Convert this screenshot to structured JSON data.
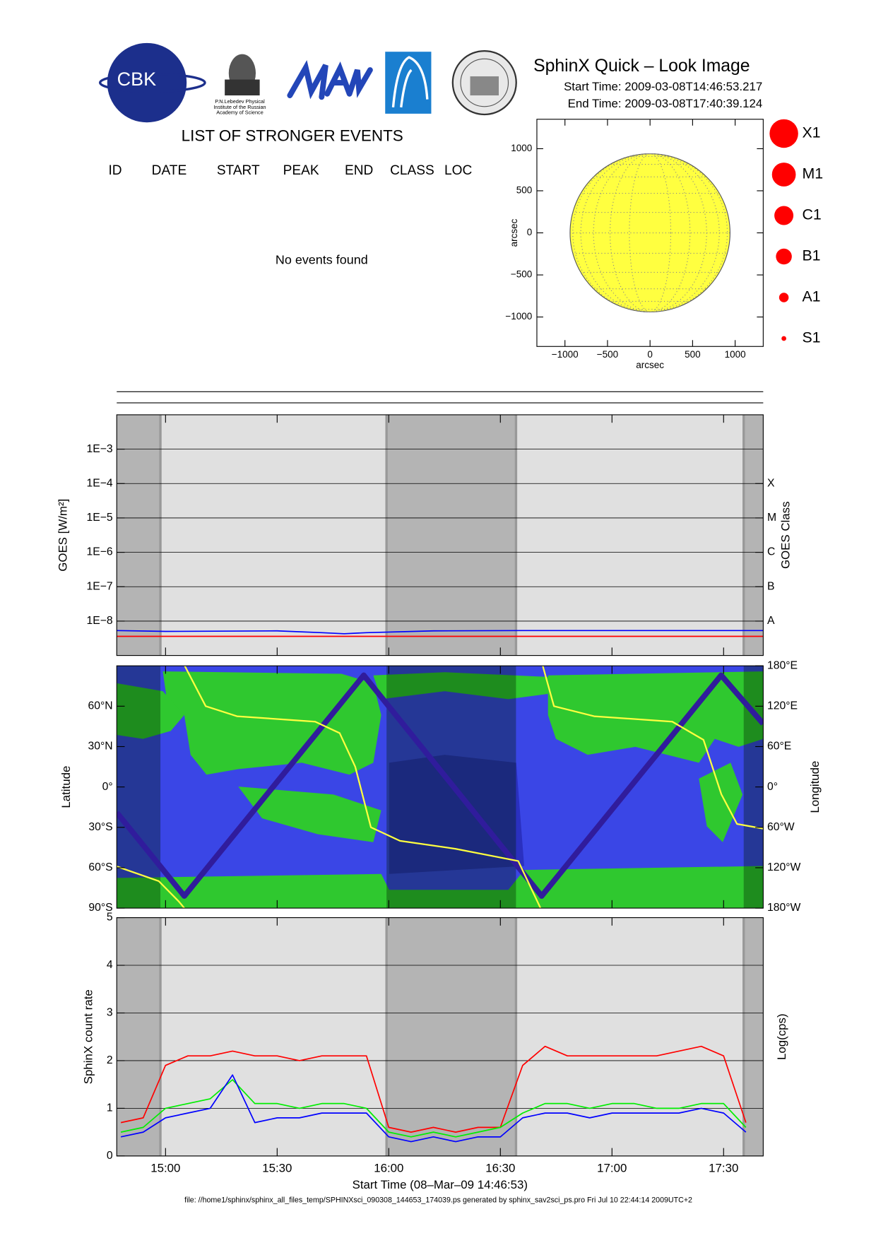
{
  "header": {
    "title": "SphinX Quick – Look Image",
    "start_time": "Start Time: 2009-03-08T14:46:53.217",
    "end_time": "End Time: 2009-03-08T17:40:39.124",
    "logo_text": "CBK",
    "logo_caption": [
      "P.N.Lebedev Physical",
      "Institute of the Russian",
      "Academy of Science"
    ]
  },
  "events": {
    "title": "LIST OF STRONGER EVENTS",
    "columns": [
      "ID",
      "DATE",
      "START",
      "PEAK",
      "END",
      "CLASS",
      "LOC"
    ],
    "message": "No events found"
  },
  "legend_classes": [
    "X1",
    "M1",
    "C1",
    "B1",
    "A1",
    "S1"
  ],
  "footer": "file: //home1/sphinx/sphinx_all_files_temp/SPHINXsci_090308_144653_174039.ps generated by sphinx_sav2sci_ps.pro Fri Jul 10 22:44:14 2009UTC+2",
  "chart_data": [
    {
      "type": "disk",
      "xlabel": "arcsec",
      "ylabel": "arcsec",
      "xlim": [
        -1330,
        1330
      ],
      "ylim": [
        -1350,
        1350
      ],
      "xticks": [
        {
          "value": -1000,
          "label": "−1000"
        },
        {
          "value": -500,
          "label": "−500"
        },
        0,
        500,
        1000
      ],
      "yticks": [
        {
          "value": -1000,
          "label": "−1000"
        },
        {
          "value": -500,
          "label": "−500"
        },
        0,
        500,
        1000
      ],
      "radius": 940,
      "color": "#ffff40"
    },
    {
      "type": "line",
      "ylabel": "GOES [W/m²]",
      "y2label": "GOES Class",
      "log_y": true,
      "xlim": [
        14.7814,
        17.6775
      ],
      "xticks": [
        15,
        15.5,
        16,
        16.5,
        17,
        17.5
      ],
      "ylim": [
        1e-09,
        0.01
      ],
      "yticks": [
        {
          "value": 0.001,
          "label": "1E−3"
        },
        {
          "value": 0.0001,
          "label": "1E−4"
        },
        {
          "value": 1e-05,
          "label": "1E−5"
        },
        {
          "value": 1e-06,
          "label": "1E−6"
        },
        {
          "value": 1e-07,
          "label": "1E−7"
        },
        {
          "value": 1e-08,
          "label": "1E−8"
        }
      ],
      "y2lim": [
        1e-09,
        0.01
      ],
      "y2ticks": [
        {
          "value": 0.0001,
          "label": "X"
        },
        {
          "value": 1e-05,
          "label": "M"
        },
        {
          "value": 1e-06,
          "label": "C"
        },
        {
          "value": 1e-07,
          "label": "B"
        },
        {
          "value": 1e-08,
          "label": "A"
        }
      ],
      "grid": true,
      "shaded": [
        [
          14.7814,
          14.977
        ],
        [
          15.99,
          16.57
        ],
        [
          17.59,
          17.6775
        ]
      ],
      "series": [
        {
          "color": "#0000ff",
          "x": [
            14.7814,
            15.0,
            15.5,
            15.7,
            15.8,
            15.9,
            16.2,
            16.6,
            17.0,
            17.6775
          ],
          "values": [
            5.3e-09,
            5e-09,
            5.2e-09,
            4.6e-09,
            4.3e-09,
            4.6e-09,
            5.2e-09,
            5.3e-09,
            5.3e-09,
            5.3e-09
          ]
        },
        {
          "color": "#ff0000",
          "x": [
            14.7814,
            17.6775
          ],
          "values": [
            3.6e-09,
            3.6e-09
          ]
        }
      ]
    },
    {
      "type": "map",
      "ylabel": "Latitude",
      "y2label": "Longitude",
      "xlim": [
        14.7814,
        17.6775
      ],
      "xticks": [
        15,
        15.5,
        16,
        16.5,
        17,
        17.5
      ],
      "ylim": [
        -90,
        90
      ],
      "yticks": [
        {
          "value": 60,
          "label": "60°N"
        },
        {
          "value": 30,
          "label": "30°N"
        },
        {
          "value": 0,
          "label": "0°"
        },
        {
          "value": -30,
          "label": "30°S"
        },
        {
          "value": -60,
          "label": "60°S"
        },
        {
          "value": -90,
          "label": "90°S"
        }
      ],
      "y2lim": [
        -180,
        180
      ],
      "y2ticks": [
        {
          "value": 180,
          "label": "180°E"
        },
        {
          "value": 120,
          "label": "120°E"
        },
        {
          "value": 60,
          "label": "60°E"
        },
        {
          "value": 0,
          "label": "0°"
        },
        {
          "value": -60,
          "label": "60°W"
        },
        {
          "value": -120,
          "label": "120°W"
        },
        {
          "value": -180,
          "label": "180°W"
        }
      ],
      "shaded": [
        [
          14.7814,
          14.977
        ],
        [
          15.99,
          16.57
        ],
        [
          17.59,
          17.6775
        ]
      ],
      "series": [
        {
          "color": "#301c9c",
          "x": [
            14.7814,
            15.084,
            15.888,
            16.685,
            17.489,
            17.677
          ],
          "values": [
            -19,
            -81,
            83,
            -81,
            83,
            47
          ]
        },
        {
          "color": "#ffff40",
          "axis": "y2",
          "x": [
            14.781,
            14.97,
            15.059,
            15.084,
            15.085,
            15.086,
            15.18,
            15.32,
            15.67,
            15.78,
            15.85,
            15.92,
            16.05,
            16.3,
            16.58,
            16.68,
            16.685,
            16.69,
            16.74,
            16.92,
            17.27,
            17.41,
            17.49,
            17.56,
            17.677
          ],
          "values": [
            -118,
            -140,
            -170,
            -180,
            null,
            180,
            120,
            105,
            97,
            80,
            30,
            -60,
            -80,
            -92,
            -110,
            -180,
            null,
            180,
            120,
            105,
            97,
            70,
            -11,
            -55,
            -62
          ]
        }
      ]
    },
    {
      "type": "line",
      "ylabel": "SphinX count rate",
      "y2label": "Log(cps)",
      "xlabel": "Start Time (08–Mar–09 14:46:53)",
      "xlim": [
        14.7814,
        17.6775
      ],
      "xticks": [
        {
          "value": 15,
          "label": "15:00"
        },
        {
          "value": 15.5,
          "label": "15:30"
        },
        {
          "value": 16,
          "label": "16:00"
        },
        {
          "value": 16.5,
          "label": "16:30"
        },
        {
          "value": 17,
          "label": "17:00"
        },
        {
          "value": 17.5,
          "label": "17:30"
        }
      ],
      "ylim": [
        0,
        5
      ],
      "yticks": [
        0,
        1,
        2,
        3,
        4,
        5
      ],
      "grid": true,
      "shaded": [
        [
          14.7814,
          14.977
        ],
        [
          15.99,
          16.57
        ],
        [
          17.59,
          17.6775
        ]
      ],
      "x": [
        14.8,
        14.9,
        15.0,
        15.1,
        15.2,
        15.3,
        15.4,
        15.5,
        15.6,
        15.7,
        15.8,
        15.9,
        16.0,
        16.1,
        16.2,
        16.3,
        16.4,
        16.5,
        16.6,
        16.7,
        16.8,
        16.9,
        17.0,
        17.1,
        17.2,
        17.3,
        17.4,
        17.5,
        17.6
      ],
      "series": [
        {
          "color": "#ff0000",
          "values": [
            0.7,
            0.8,
            1.9,
            2.1,
            2.1,
            2.2,
            2.1,
            2.1,
            2.0,
            2.1,
            2.1,
            2.1,
            0.6,
            0.5,
            0.6,
            0.5,
            0.6,
            0.6,
            1.9,
            2.3,
            2.1,
            2.1,
            2.1,
            2.1,
            2.1,
            2.2,
            2.3,
            2.1,
            0.7
          ]
        },
        {
          "color": "#00ee00",
          "values": [
            0.5,
            0.6,
            1.0,
            1.1,
            1.2,
            1.6,
            1.1,
            1.1,
            1.0,
            1.1,
            1.1,
            1.0,
            0.5,
            0.4,
            0.5,
            0.4,
            0.5,
            0.6,
            0.9,
            1.1,
            1.1,
            1.0,
            1.1,
            1.1,
            1.0,
            1.0,
            1.1,
            1.1,
            0.6
          ]
        },
        {
          "color": "#0000ff",
          "values": [
            0.4,
            0.5,
            0.8,
            0.9,
            1.0,
            1.7,
            0.7,
            0.8,
            0.8,
            0.9,
            0.9,
            0.9,
            0.4,
            0.3,
            0.4,
            0.3,
            0.4,
            0.4,
            0.8,
            0.9,
            0.9,
            0.8,
            0.9,
            0.9,
            0.9,
            0.9,
            1.0,
            0.9,
            0.5
          ]
        }
      ]
    }
  ]
}
